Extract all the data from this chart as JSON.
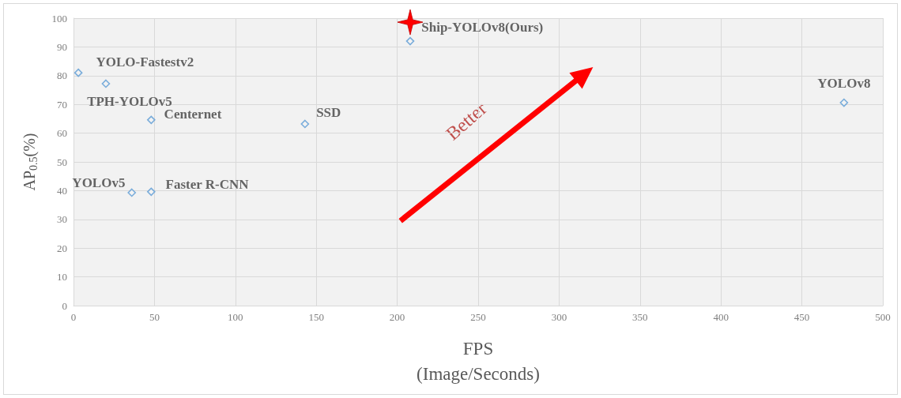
{
  "chart_data": {
    "type": "scatter",
    "xlabel": "FPS\n(Image/Seconds)",
    "ylabel": "AP$_{0.5}$(%)",
    "x": [
      3,
      20,
      48,
      143,
      36,
      48,
      208,
      476
    ],
    "series": [
      {
        "color": "#5b9bd5",
        "values": [
          81,
          77.2,
          64.6,
          63.2,
          39.3,
          39.6,
          92,
          70.6
        ],
        "value_labels": [
          "YOLO-Fastestv2",
          "TPH-YOLOv5",
          "Centernet",
          "SSD",
          "YOLOv5",
          "Faster R-CNN",
          "Ship-YOLOv8(Ours)",
          "YOLOv8"
        ]
      }
    ],
    "xlim": [
      0,
      500
    ],
    "xticks": [
      0,
      50,
      100,
      150,
      200,
      250,
      300,
      350,
      400,
      450,
      500
    ],
    "ylim": [
      0,
      100
    ],
    "yticks": [
      0,
      10,
      20,
      30,
      40,
      50,
      60,
      70,
      80,
      90,
      100
    ],
    "grid": true,
    "marker": "diamond",
    "annotations": [
      "Better"
    ]
  }
}
